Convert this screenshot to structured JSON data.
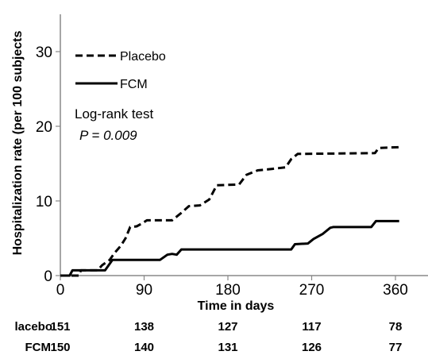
{
  "chart_data": {
    "type": "line",
    "xlabel": "Time in days",
    "ylabel": "Hospitalization rate (per 100 subjects",
    "xlim": [
      0,
      380
    ],
    "ylim": [
      0,
      35
    ],
    "xticks": [
      0,
      90,
      180,
      270,
      360
    ],
    "yticks": [
      0,
      10,
      20,
      30
    ],
    "xtick_labels": [
      "0",
      "90",
      "180",
      "270",
      "360"
    ],
    "ytick_labels": [
      "0",
      "10",
      "20",
      "30"
    ],
    "grid": false,
    "legend_position": "top-left",
    "series": [
      {
        "name": "Placebo",
        "style": "dashed",
        "color": "#000000",
        "points": [
          [
            0,
            0
          ],
          [
            20,
            0
          ],
          [
            22,
            0.7
          ],
          [
            40,
            0.7
          ],
          [
            45,
            1.4
          ],
          [
            53,
            2.1
          ],
          [
            58,
            3.0
          ],
          [
            65,
            4.0
          ],
          [
            70,
            5.0
          ],
          [
            75,
            6.5
          ],
          [
            82,
            6.6
          ],
          [
            88,
            7.0
          ],
          [
            93,
            7.4
          ],
          [
            120,
            7.4
          ],
          [
            130,
            8.4
          ],
          [
            138,
            9.3
          ],
          [
            150,
            9.4
          ],
          [
            160,
            10.2
          ],
          [
            168,
            12.1
          ],
          [
            192,
            12.2
          ],
          [
            200,
            13.5
          ],
          [
            212,
            14.1
          ],
          [
            228,
            14.3
          ],
          [
            242,
            14.5
          ],
          [
            248,
            15.6
          ],
          [
            255,
            16.3
          ],
          [
            338,
            16.4
          ],
          [
            342,
            17.1
          ],
          [
            364,
            17.2
          ]
        ]
      },
      {
        "name": "FCM",
        "style": "solid",
        "color": "#000000",
        "points": [
          [
            0,
            0
          ],
          [
            10,
            0
          ],
          [
            13,
            0.7
          ],
          [
            48,
            0.7
          ],
          [
            52,
            1.4
          ],
          [
            56,
            2.1
          ],
          [
            107,
            2.1
          ],
          [
            115,
            2.8
          ],
          [
            120,
            2.9
          ],
          [
            125,
            2.8
          ],
          [
            130,
            3.5
          ],
          [
            248,
            3.5
          ],
          [
            252,
            4.2
          ],
          [
            266,
            4.3
          ],
          [
            272,
            4.9
          ],
          [
            282,
            5.6
          ],
          [
            290,
            6.4
          ],
          [
            293,
            6.5
          ],
          [
            334,
            6.5
          ],
          [
            339,
            7.3
          ],
          [
            364,
            7.3
          ]
        ]
      }
    ],
    "annotations": [
      "Log-rank test",
      "P = 0.009"
    ],
    "risk_table": {
      "rows": [
        {
          "label": "lacebo",
          "values": [
            "151",
            "138",
            "127",
            "117",
            "78"
          ]
        },
        {
          "label": "FCM",
          "values": [
            "150",
            "140",
            "131",
            "126",
            "77"
          ]
        }
      ]
    }
  }
}
